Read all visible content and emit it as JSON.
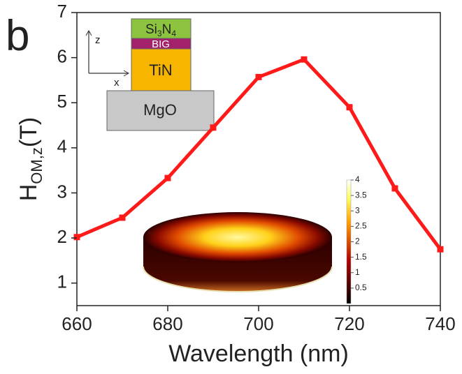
{
  "chart_data": {
    "type": "line",
    "panel_label": "b",
    "xlabel": "Wavelength (nm)",
    "ylabel": {
      "main": "H",
      "sub": "OM,z",
      "unit": "(T)"
    },
    "x": [
      660,
      670,
      680,
      690,
      700,
      710,
      720,
      730,
      740
    ],
    "series": [
      {
        "color": "#ff1a1a",
        "values": [
          2.02,
          2.45,
          3.33,
          4.45,
          5.57,
          5.96,
          4.9,
          3.1,
          1.75
        ]
      }
    ],
    "xlim": [
      660,
      740
    ],
    "xticks": [
      660,
      680,
      700,
      720,
      740
    ],
    "ylim": [
      0.5,
      7
    ],
    "yticks": [
      1,
      2,
      3,
      4,
      5,
      6,
      7
    ],
    "schematic": {
      "axis_z": "z",
      "axis_x": "x",
      "layers": {
        "top": {
          "a": "Si",
          "a_sub": "3",
          "b": "N",
          "b_sub": "4"
        },
        "middle": "BIG",
        "core": "TiN",
        "substrate": "MgO"
      }
    },
    "colorbar": {
      "clim": [
        0,
        4
      ],
      "ticks": [
        4,
        3.5,
        3,
        2.5,
        2,
        1.5,
        1,
        0.5
      ]
    }
  }
}
